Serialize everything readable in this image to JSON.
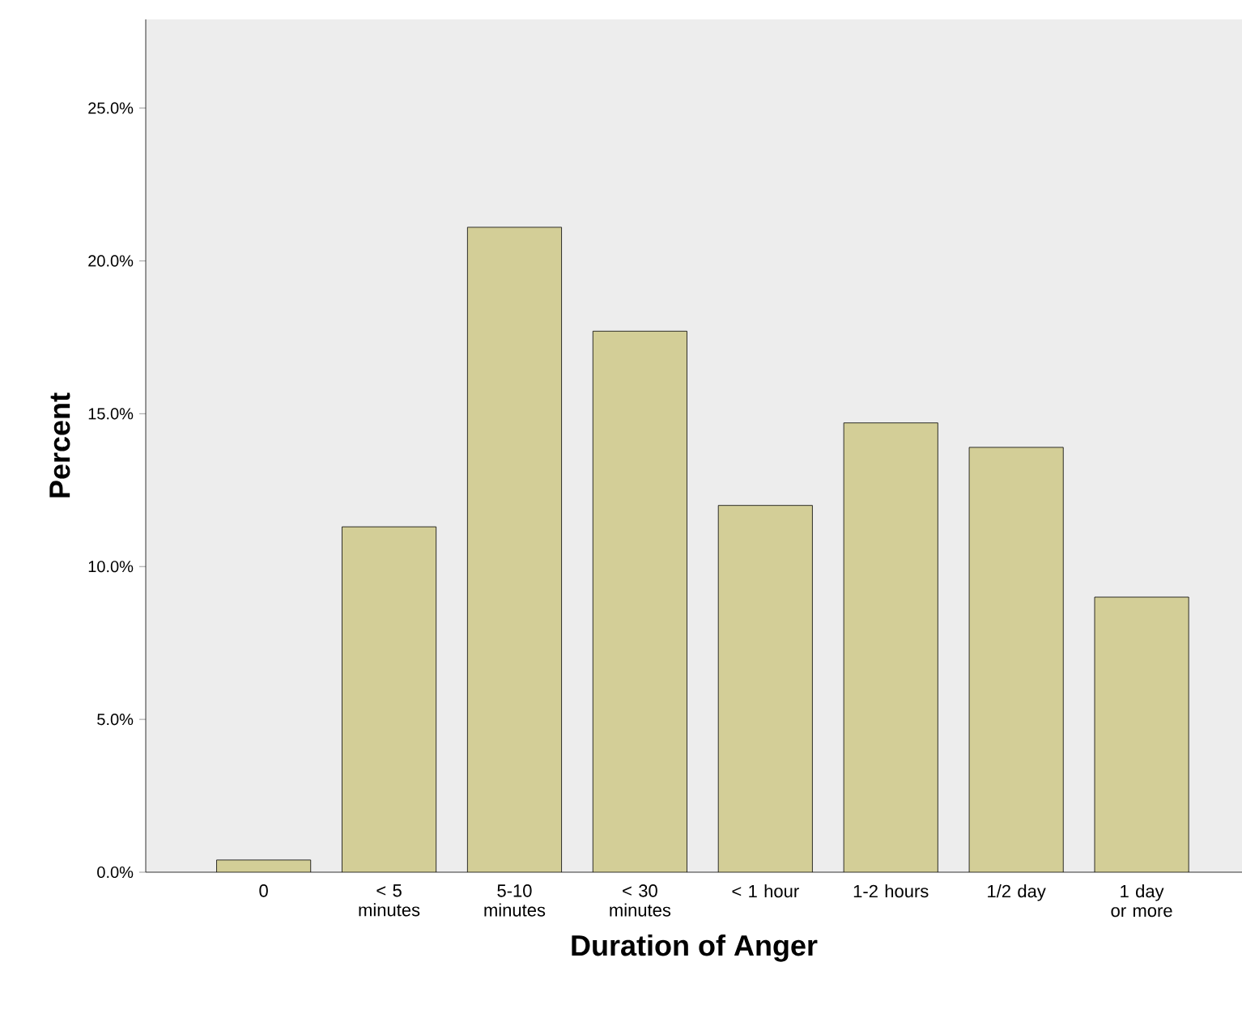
{
  "chart_data": {
    "type": "bar",
    "xlabel": "Duration of Anger",
    "ylabel": "Percent",
    "categories": [
      "0",
      "< 5 minutes",
      "5-10 minutes",
      "< 30 minutes",
      "< 1 hour",
      "1-2 hours",
      "1/2 day",
      "1 day or more"
    ],
    "values": [
      0.4,
      11.3,
      21.1,
      17.7,
      12.0,
      14.7,
      13.9,
      9.0
    ],
    "color": "#d3ce97",
    "ylim": [
      0,
      27.9
    ],
    "yticks": [
      {
        "value": 0,
        "label": "0.0%"
      },
      {
        "value": 5,
        "label": "5.0%"
      },
      {
        "value": 10,
        "label": "10.0%"
      },
      {
        "value": 15,
        "label": "15.0%"
      },
      {
        "value": 20,
        "label": "20.0%"
      },
      {
        "value": 25,
        "label": "25.0%"
      }
    ],
    "grid": false
  }
}
